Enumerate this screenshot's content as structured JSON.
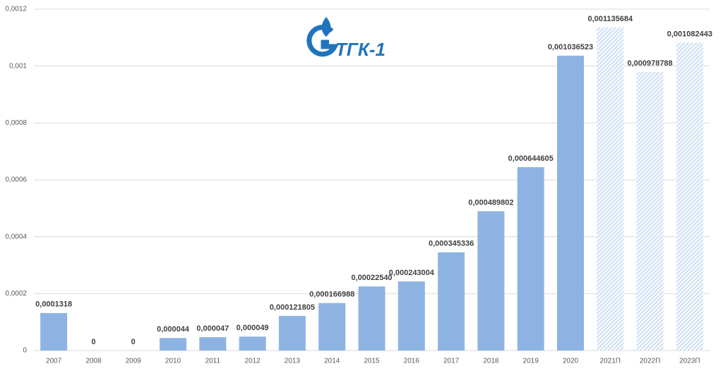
{
  "chart_data": {
    "type": "bar",
    "logo": "ТГК-1",
    "categories": [
      "2007",
      "2008",
      "2009",
      "2010",
      "2011",
      "2012",
      "2013",
      "2014",
      "2015",
      "2016",
      "2017",
      "2018",
      "2019",
      "2020",
      "2021П",
      "2022П",
      "2023П"
    ],
    "values": [
      0.0001318,
      0,
      0,
      4.4e-05,
      4.7e-05,
      4.9e-05,
      0.000121805,
      0.000166988,
      0.0002254,
      0.000243004,
      0.000345336,
      0.000489802,
      0.000644605,
      0.001036523,
      0.001135684,
      0.000978788,
      0.001082443
    ],
    "value_labels": [
      "0,0001318",
      "0",
      "0",
      "0,000044",
      "0,000047",
      "0,000049",
      "0,000121805",
      "0,000166988",
      "0,00022540",
      "0,000243004",
      "0,000345336",
      "0,000489802",
      "0,000644605",
      "0,001036523",
      "0,001135684",
      "0,000978788",
      "0,001082443"
    ],
    "bar_styles": [
      "solid",
      "solid",
      "solid",
      "solid",
      "solid",
      "solid",
      "solid",
      "solid",
      "solid",
      "solid",
      "solid",
      "solid",
      "solid",
      "solid",
      "hatched",
      "hatched",
      "hatched"
    ],
    "color": "#8db3e2",
    "ylim": [
      0,
      0.0012
    ],
    "yticks": [
      0,
      {
        "value": 0.0002,
        "label": "0,0002"
      },
      {
        "value": 0.0004,
        "label": "0,0004"
      },
      {
        "value": 0.0006,
        "label": "0,0006"
      },
      {
        "value": 0.0008,
        "label": "0,0008"
      },
      {
        "value": 0.001,
        "label": "0,001"
      },
      {
        "value": 0.0012,
        "label": "0,0012"
      }
    ],
    "grid": true
  }
}
